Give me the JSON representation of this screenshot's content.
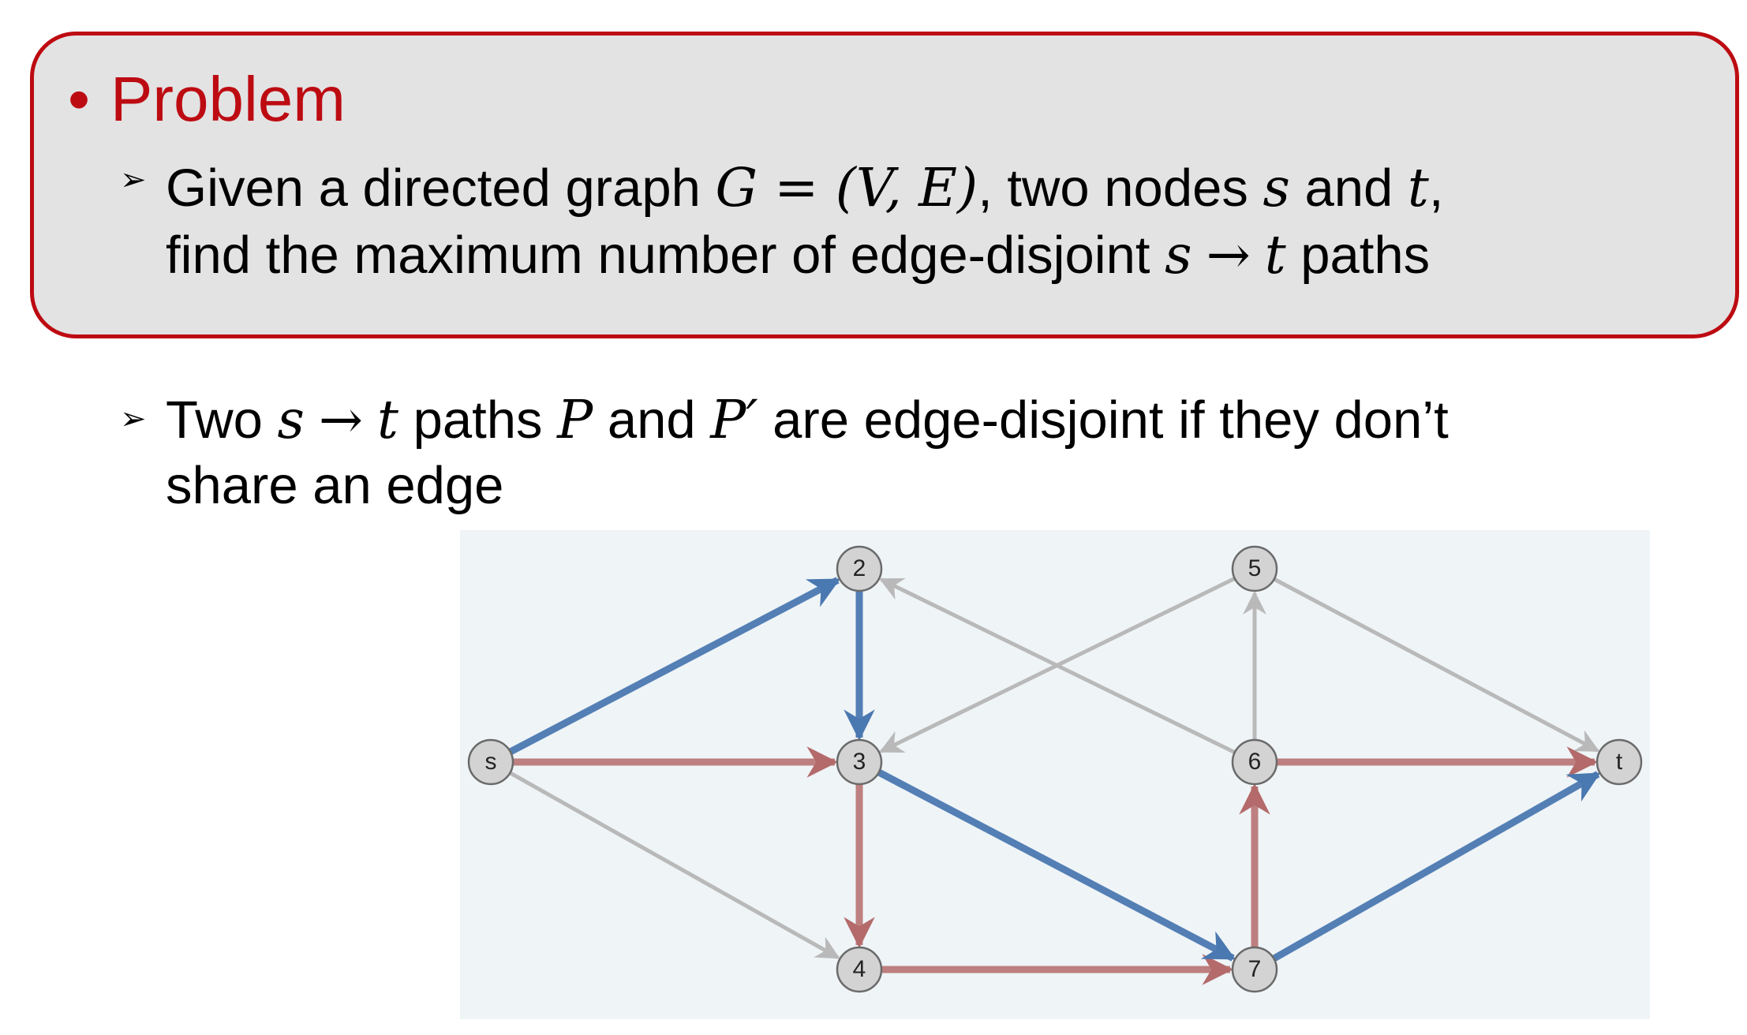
{
  "problem": {
    "heading_bullet": "•",
    "heading": "Problem",
    "line1_a": "Given a directed graph ",
    "line1_math": "G = (V, E)",
    "line1_b": ", two nodes ",
    "line1_s": "s",
    "line1_c": " and ",
    "line1_t": "t",
    "line1_d": ",",
    "line2_a": "find the maximum number of edge-disjoint ",
    "line2_s": "s",
    "line2_arrow": "→",
    "line2_t": "t",
    "line2_b": " paths"
  },
  "definition": {
    "line1_a": "Two ",
    "line1_s": "s",
    "line1_arrow": "→",
    "line1_t": "t",
    "line1_b": " paths ",
    "line1_P": "P",
    "line1_c": " and ",
    "line1_P2": "P′",
    "line1_d": " are edge-disjoint if they don’t",
    "line2": "share an edge"
  },
  "colors": {
    "accent_red": "#bd0b12",
    "path_blue": "#4a78b0",
    "path_red": "#b46a6a",
    "edge_gray": "#b9b9b9",
    "panel_bg": "#eff4f7",
    "box_bg": "#e3e3e3"
  },
  "graph": {
    "nodes": [
      {
        "id": "s",
        "label": "s"
      },
      {
        "id": "2",
        "label": "2"
      },
      {
        "id": "3",
        "label": "3"
      },
      {
        "id": "4",
        "label": "4"
      },
      {
        "id": "5",
        "label": "5"
      },
      {
        "id": "6",
        "label": "6"
      },
      {
        "id": "7",
        "label": "7"
      },
      {
        "id": "t",
        "label": "t"
      }
    ],
    "edges": [
      {
        "from": "s",
        "to": "4",
        "path": "none"
      },
      {
        "from": "6",
        "to": "2",
        "path": "none"
      },
      {
        "from": "5",
        "to": "3",
        "path": "none"
      },
      {
        "from": "6",
        "to": "5",
        "path": "none"
      },
      {
        "from": "5",
        "to": "t",
        "path": "none"
      },
      {
        "from": "s",
        "to": "3",
        "path": "red"
      },
      {
        "from": "3",
        "to": "4",
        "path": "red"
      },
      {
        "from": "4",
        "to": "7",
        "path": "red"
      },
      {
        "from": "7",
        "to": "6",
        "path": "red"
      },
      {
        "from": "6",
        "to": "t",
        "path": "red"
      },
      {
        "from": "s",
        "to": "2",
        "path": "blue"
      },
      {
        "from": "2",
        "to": "3",
        "path": "blue"
      },
      {
        "from": "3",
        "to": "7",
        "path": "blue"
      },
      {
        "from": "7",
        "to": "t",
        "path": "blue"
      }
    ]
  }
}
